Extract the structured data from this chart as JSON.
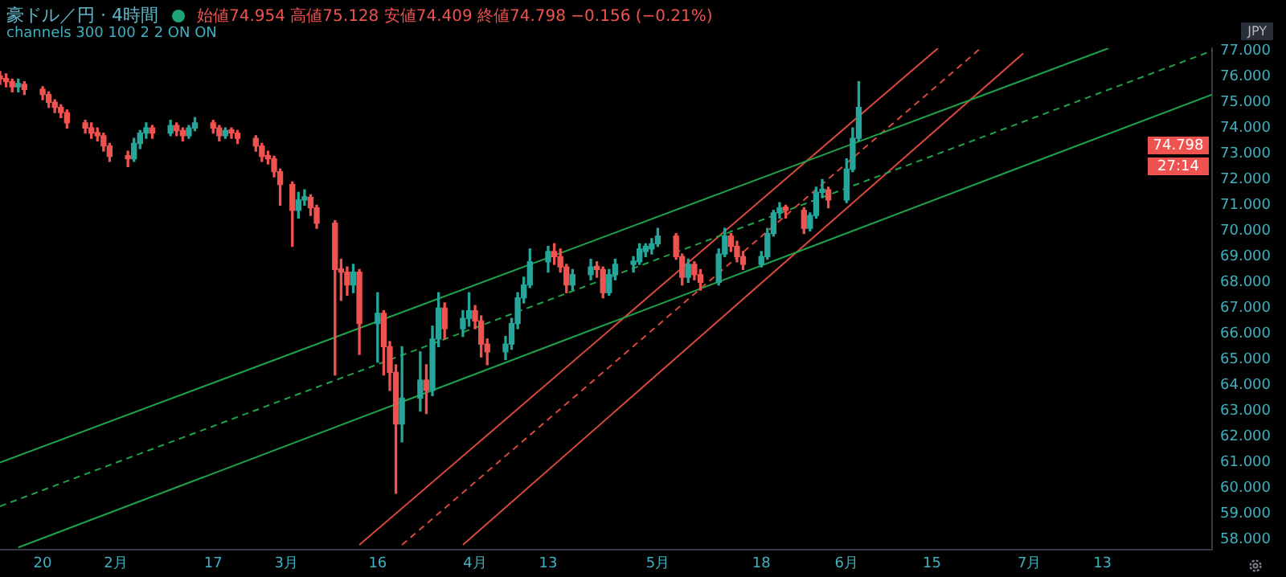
{
  "chart_data": {
    "type": "candlestick",
    "title": "豪ドル／円 · 4時間",
    "subtitle": "始値74.954 高値75.128 安値74.409 終値74.798 −0.156 (−0.21%)",
    "ylabel": "JPY",
    "annotations": [
      "channels 300 100 2 2 ON ON",
      "74.798",
      "27:14"
    ],
    "x": [
      "--01-13",
      "--01-14",
      "--01-15",
      "--01-16",
      "--01-17",
      "--01-20",
      "--01-21",
      "--01-22",
      "--01-23",
      "--01-24",
      "--01-27",
      "--01-28",
      "--01-29",
      "--01-30",
      "--01-31",
      "--02-03",
      "--02-04",
      "--02-05",
      "--02-06",
      "--02-07",
      "--02-10",
      "--02-11",
      "--02-12",
      "--02-13",
      "--02-14",
      "--02-17",
      "--02-18",
      "--02-19",
      "--02-20",
      "--02-21",
      "--02-24",
      "--02-25",
      "--02-26",
      "--02-27",
      "--02-28",
      "--03-02",
      "--03-03",
      "--03-04",
      "--03-05",
      "--03-06",
      "--03-09",
      "--03-10",
      "--03-11",
      "--03-12",
      "--03-13",
      "--03-16",
      "--03-17",
      "--03-18",
      "--03-19",
      "--03-20",
      "--03-23",
      "--03-24",
      "--03-25",
      "--03-26",
      "--03-27",
      "--03-30",
      "--03-31",
      "--04-01",
      "--04-02",
      "--04-03",
      "--04-06",
      "--04-07",
      "--04-08",
      "--04-09",
      "--04-10",
      "--04-13",
      "--04-14",
      "--04-15",
      "--04-16",
      "--04-17",
      "--04-20",
      "--04-21",
      "--04-22",
      "--04-23",
      "--04-24",
      "--04-27",
      "--04-28",
      "--04-29",
      "--04-30",
      "--05-01",
      "--05-04",
      "--05-05",
      "--05-06",
      "--05-07",
      "--05-08",
      "--05-11",
      "--05-12",
      "--05-13",
      "--05-14",
      "--05-15",
      "--05-18",
      "--05-19",
      "--05-20",
      "--05-21",
      "--05-22",
      "--05-25",
      "--05-26",
      "--05-27",
      "--05-28",
      "--05-29",
      "--06-01",
      "--06-02",
      "--06-03"
    ],
    "ohlc": [
      [
        76.0,
        76.2,
        75.7,
        75.9
      ],
      [
        75.9,
        76.1,
        75.6,
        75.8
      ],
      [
        75.8,
        75.9,
        75.4,
        75.6
      ],
      [
        75.6,
        75.9,
        75.4,
        75.7
      ],
      [
        75.7,
        75.8,
        75.3,
        75.5
      ],
      [
        75.5,
        75.6,
        75.1,
        75.3
      ],
      [
        75.3,
        75.4,
        74.8,
        75.0
      ],
      [
        75.0,
        75.1,
        74.6,
        74.8
      ],
      [
        74.8,
        74.9,
        74.4,
        74.6
      ],
      [
        74.6,
        74.7,
        74.0,
        74.2
      ],
      [
        74.2,
        74.3,
        73.8,
        74.0
      ],
      [
        74.0,
        74.2,
        73.6,
        73.8
      ],
      [
        73.8,
        74.0,
        73.5,
        73.7
      ],
      [
        73.7,
        73.8,
        73.1,
        73.3
      ],
      [
        73.3,
        73.4,
        72.7,
        72.9
      ],
      [
        72.9,
        73.1,
        72.5,
        72.8
      ],
      [
        72.8,
        73.6,
        72.7,
        73.4
      ],
      [
        73.4,
        73.9,
        73.2,
        73.8
      ],
      [
        73.8,
        74.2,
        73.6,
        74.0
      ],
      [
        74.0,
        74.1,
        73.6,
        73.8
      ],
      [
        73.8,
        74.3,
        73.7,
        74.1
      ],
      [
        74.1,
        74.2,
        73.7,
        73.9
      ],
      [
        73.9,
        74.0,
        73.5,
        73.7
      ],
      [
        73.7,
        74.1,
        73.6,
        74.0
      ],
      [
        74.0,
        74.4,
        73.9,
        74.2
      ],
      [
        74.2,
        74.3,
        73.8,
        74.0
      ],
      [
        74.0,
        74.1,
        73.5,
        73.7
      ],
      [
        73.7,
        74.0,
        73.6,
        73.9
      ],
      [
        73.9,
        74.0,
        73.6,
        73.8
      ],
      [
        73.8,
        73.9,
        73.4,
        73.6
      ],
      [
        73.6,
        73.7,
        73.1,
        73.3
      ],
      [
        73.3,
        73.4,
        72.7,
        72.9
      ],
      [
        72.9,
        73.1,
        72.6,
        72.8
      ],
      [
        72.8,
        72.9,
        72.1,
        72.3
      ],
      [
        72.3,
        72.4,
        71.0,
        71.8
      ],
      [
        71.8,
        71.9,
        69.4,
        70.8
      ],
      [
        70.8,
        71.5,
        70.5,
        71.2
      ],
      [
        71.2,
        71.6,
        71.0,
        71.3
      ],
      [
        71.3,
        71.4,
        70.6,
        70.9
      ],
      [
        70.9,
        71.0,
        70.1,
        70.3
      ],
      [
        70.3,
        70.4,
        64.4,
        68.5
      ],
      [
        68.5,
        68.9,
        67.3,
        68.4
      ],
      [
        68.4,
        68.6,
        67.5,
        67.9
      ],
      [
        67.9,
        68.7,
        67.6,
        68.4
      ],
      [
        68.4,
        68.5,
        65.2,
        66.4
      ],
      [
        66.4,
        67.6,
        64.9,
        66.8
      ],
      [
        66.8,
        66.9,
        64.4,
        65.5
      ],
      [
        65.5,
        65.7,
        63.8,
        64.5
      ],
      [
        64.5,
        64.8,
        59.8,
        62.5
      ],
      [
        62.5,
        65.5,
        61.8,
        63.5
      ],
      [
        63.5,
        65.3,
        63.0,
        64.2
      ],
      [
        64.2,
        64.8,
        62.9,
        63.8
      ],
      [
        63.8,
        66.3,
        63.6,
        65.8
      ],
      [
        65.8,
        67.6,
        65.5,
        67.0
      ],
      [
        67.0,
        67.2,
        65.8,
        66.2
      ],
      [
        66.2,
        66.9,
        65.9,
        66.6
      ],
      [
        66.6,
        67.6,
        66.3,
        66.9
      ],
      [
        66.9,
        67.1,
        66.2,
        66.5
      ],
      [
        66.5,
        66.7,
        65.1,
        65.6
      ],
      [
        65.6,
        65.8,
        64.8,
        65.3
      ],
      [
        65.3,
        65.9,
        65.0,
        65.6
      ],
      [
        65.6,
        66.6,
        65.4,
        66.4
      ],
      [
        66.4,
        67.6,
        66.2,
        67.4
      ],
      [
        67.4,
        68.2,
        67.2,
        67.9
      ],
      [
        67.9,
        69.3,
        67.8,
        68.8
      ],
      [
        68.8,
        69.4,
        68.4,
        69.2
      ],
      [
        69.2,
        69.5,
        68.7,
        69.0
      ],
      [
        69.0,
        69.3,
        68.4,
        68.6
      ],
      [
        68.6,
        68.7,
        67.6,
        67.9
      ],
      [
        67.9,
        68.5,
        67.7,
        68.3
      ],
      [
        68.3,
        68.9,
        68.1,
        68.6
      ],
      [
        68.6,
        68.8,
        68.2,
        68.5
      ],
      [
        68.5,
        68.6,
        67.4,
        67.6
      ],
      [
        67.6,
        68.5,
        67.5,
        68.3
      ],
      [
        68.3,
        68.9,
        68.1,
        68.7
      ],
      [
        68.7,
        69.0,
        68.4,
        68.8
      ],
      [
        68.8,
        69.5,
        68.7,
        69.3
      ],
      [
        69.2,
        69.5,
        69.0,
        69.4
      ],
      [
        69.3,
        69.7,
        69.1,
        69.5
      ],
      [
        69.5,
        70.1,
        69.4,
        69.8
      ],
      [
        69.8,
        69.9,
        68.9,
        69.0
      ],
      [
        69.0,
        69.1,
        67.9,
        68.2
      ],
      [
        68.2,
        68.9,
        68.0,
        68.7
      ],
      [
        68.7,
        68.8,
        68.1,
        68.3
      ],
      [
        68.3,
        68.5,
        67.7,
        68.0
      ],
      [
        68.0,
        69.3,
        67.9,
        69.1
      ],
      [
        69.1,
        70.1,
        69.0,
        69.8
      ],
      [
        69.8,
        69.9,
        69.2,
        69.4
      ],
      [
        69.4,
        69.6,
        68.8,
        69.0
      ],
      [
        69.0,
        69.2,
        68.5,
        68.7
      ],
      [
        68.7,
        69.2,
        68.6,
        69.0
      ],
      [
        69.0,
        70.1,
        68.9,
        69.9
      ],
      [
        69.9,
        70.8,
        69.8,
        70.7
      ],
      [
        70.7,
        71.1,
        70.5,
        70.9
      ],
      [
        70.9,
        71.0,
        70.5,
        70.8
      ],
      [
        70.8,
        70.9,
        69.9,
        70.1
      ],
      [
        70.1,
        70.7,
        70.0,
        70.6
      ],
      [
        70.6,
        71.7,
        70.5,
        71.5
      ],
      [
        71.5,
        72.0,
        71.3,
        71.6
      ],
      [
        71.6,
        71.7,
        70.9,
        71.2
      ],
      [
        71.2,
        72.8,
        71.1,
        72.4
      ],
      [
        72.4,
        74.0,
        72.3,
        73.6
      ],
      [
        73.6,
        75.8,
        73.5,
        74.798
      ]
    ],
    "colors": [
      "#ef5350",
      "#ef5350",
      "#ef5350",
      "#26a69a",
      "#ef5350",
      "#ef5350",
      "#ef5350",
      "#ef5350",
      "#ef5350",
      "#ef5350",
      "#ef5350",
      "#ef5350",
      "#ef5350",
      "#ef5350",
      "#ef5350",
      "#ef5350",
      "#26a69a",
      "#26a69a",
      "#26a69a",
      "#ef5350",
      "#26a69a",
      "#ef5350",
      "#ef5350",
      "#26a69a",
      "#26a69a",
      "#ef5350",
      "#ef5350",
      "#26a69a",
      "#ef5350",
      "#ef5350",
      "#ef5350",
      "#ef5350",
      "#ef5350",
      "#ef5350",
      "#ef5350",
      "#ef5350",
      "#26a69a",
      "#26a69a",
      "#ef5350",
      "#ef5350",
      "#ef5350",
      "#ef5350",
      "#ef5350",
      "#26a69a",
      "#ef5350",
      "#26a69a",
      "#ef5350",
      "#ef5350",
      "#ef5350",
      "#26a69a",
      "#26a69a",
      "#ef5350",
      "#26a69a",
      "#26a69a",
      "#ef5350",
      "#26a69a",
      "#26a69a",
      "#ef5350",
      "#ef5350",
      "#ef5350",
      "#26a69a",
      "#26a69a",
      "#26a69a",
      "#26a69a",
      "#26a69a",
      "#26a69a",
      "#ef5350",
      "#ef5350",
      "#ef5350",
      "#26a69a",
      "#26a69a",
      "#ef5350",
      "#ef5350",
      "#26a69a",
      "#26a69a",
      "#26a69a",
      "#26a69a",
      "#26a69a",
      "#26a69a",
      "#26a69a",
      "#ef5350",
      "#ef5350",
      "#26a69a",
      "#ef5350",
      "#ef5350",
      "#26a69a",
      "#26a69a",
      "#ef5350",
      "#ef5350",
      "#ef5350",
      "#26a69a",
      "#26a69a",
      "#26a69a",
      "#26a69a",
      "#ef5350",
      "#ef5350",
      "#26a69a",
      "#26a69a",
      "#26a69a",
      "#ef5350",
      "#26a69a",
      "#26a69a",
      "#26a69a"
    ],
    "series": [
      {
        "type": "line",
        "x": [
          "--01-13",
          "--07-14"
        ],
        "values": [
          61.0,
          77.1
        ],
        "color": "#1fa34a",
        "line_style": "solid"
      },
      {
        "type": "line",
        "x": [
          "--01-13",
          "--07-31"
        ],
        "values": [
          59.3,
          77.0
        ],
        "color": "#1fa34a",
        "line_style": "dashed"
      },
      {
        "type": "line",
        "x": [
          "--01-16",
          "--07-31"
        ],
        "values": [
          57.7,
          75.3
        ],
        "color": "#1fa34a",
        "line_style": "solid"
      },
      {
        "type": "line",
        "x": [
          "--03-13",
          "--06-16"
        ],
        "values": [
          57.8,
          77.1
        ],
        "color": "#d9483b",
        "line_style": "solid"
      },
      {
        "type": "line",
        "x": [
          "--03-20",
          "--06-23"
        ],
        "values": [
          57.8,
          77.1
        ],
        "color": "#d9483b",
        "line_style": "dashed"
      },
      {
        "type": "line",
        "x": [
          "--03-30",
          "--06-30"
        ],
        "values": [
          57.8,
          76.9
        ],
        "color": "#d9483b",
        "line_style": "solid"
      }
    ],
    "xlim": [
      "--01-13",
      "--07-31"
    ],
    "xticks": [
      {
        "value": "--01-20",
        "label": "20"
      },
      {
        "value": "--02-01",
        "label": "2月"
      },
      {
        "value": "--02-17",
        "label": "17"
      },
      {
        "value": "--03-01",
        "label": "3月"
      },
      {
        "value": "--03-16",
        "label": "16"
      },
      {
        "value": "--04-01",
        "label": "4月"
      },
      {
        "value": "--04-13",
        "label": "13"
      },
      {
        "value": "--05-01",
        "label": "5月"
      },
      {
        "value": "--05-18",
        "label": "18"
      },
      {
        "value": "--06-01",
        "label": "6月"
      },
      {
        "value": "--06-15",
        "label": "15"
      },
      {
        "value": "--07-01",
        "label": "7月"
      },
      {
        "value": "--07-13",
        "label": "13"
      }
    ],
    "ylim": [
      57.6,
      77.1
    ],
    "yticks": [
      {
        "value": 58,
        "label": "58.000"
      },
      {
        "value": 59,
        "label": "59.000"
      },
      {
        "value": 60,
        "label": "60.000"
      },
      {
        "value": 61,
        "label": "61.000"
      },
      {
        "value": 62,
        "label": "62.000"
      },
      {
        "value": 63,
        "label": "63.000"
      },
      {
        "value": 64,
        "label": "64.000"
      },
      {
        "value": 65,
        "label": "65.000"
      },
      {
        "value": 66,
        "label": "66.000"
      },
      {
        "value": 67,
        "label": "67.000"
      },
      {
        "value": 68,
        "label": "68.000"
      },
      {
        "value": 69,
        "label": "69.000"
      },
      {
        "value": 70,
        "label": "70.000"
      },
      {
        "value": 71,
        "label": "71.000"
      },
      {
        "value": 72,
        "label": "72.000"
      },
      {
        "value": 73,
        "label": "73.000"
      },
      {
        "value": 74,
        "label": "74.000"
      },
      {
        "value": 75,
        "label": "75.000"
      },
      {
        "value": 76,
        "label": "76.000"
      },
      {
        "value": 77,
        "label": "77.000"
      }
    ],
    "grid": false,
    "legend": false
  }
}
